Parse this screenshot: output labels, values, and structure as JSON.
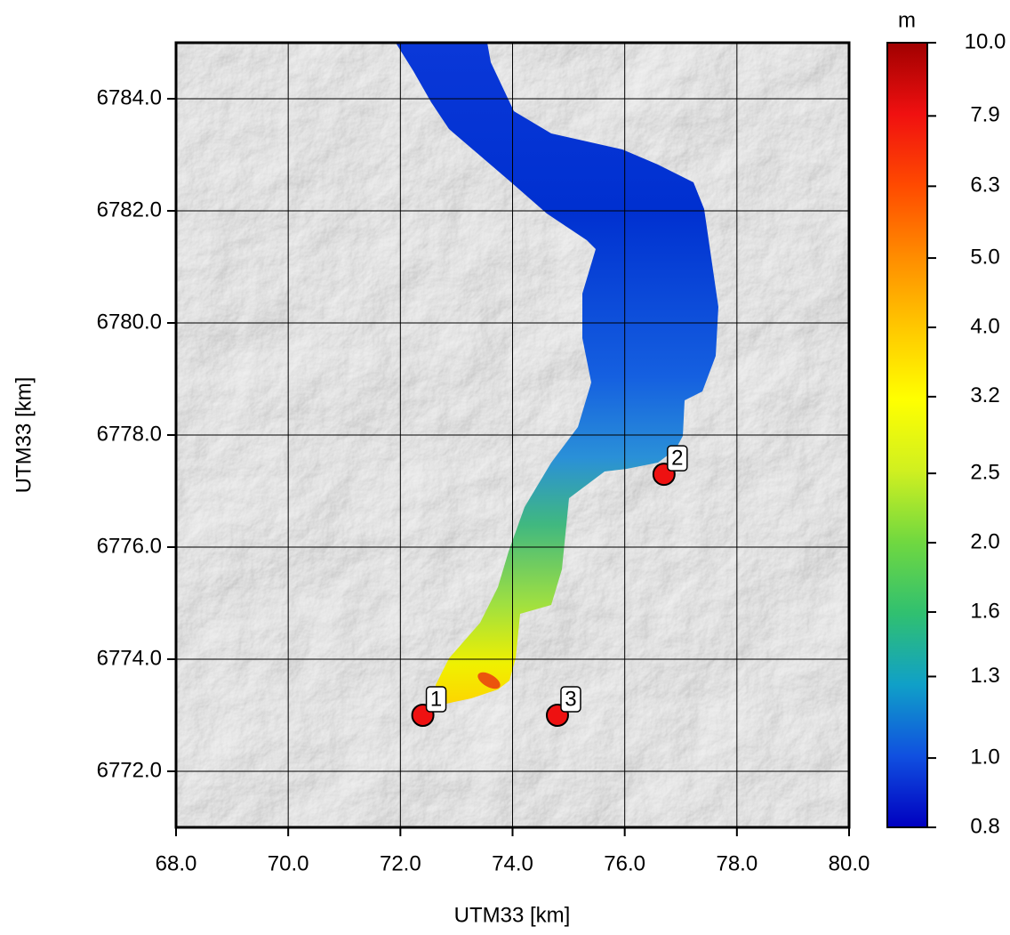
{
  "map": {
    "xlabel": "UTM33 [km]",
    "ylabel": "UTM33 [km]",
    "xlim": [
      68,
      80
    ],
    "ylim": [
      6771,
      6785
    ],
    "xticks": [
      {
        "value": 68,
        "label": "68.0"
      },
      {
        "value": 70,
        "label": "70.0"
      },
      {
        "value": 72,
        "label": "72.0"
      },
      {
        "value": 74,
        "label": "74.0"
      },
      {
        "value": 76,
        "label": "76.0"
      },
      {
        "value": 78,
        "label": "78.0"
      },
      {
        "value": 80,
        "label": "80.0"
      }
    ],
    "yticks": [
      {
        "value": 6772,
        "label": "6772.0"
      },
      {
        "value": 6774,
        "label": "6774.0"
      },
      {
        "value": 6776,
        "label": "6776.0"
      },
      {
        "value": 6778,
        "label": "6778.0"
      },
      {
        "value": 6780,
        "label": "6780.0"
      },
      {
        "value": 6782,
        "label": "6782.0"
      },
      {
        "value": 6784,
        "label": "6784.0"
      }
    ],
    "grid": true,
    "markers": [
      {
        "label": "1",
        "x": 72.4,
        "y": 6773.0,
        "color": "#ee1111"
      },
      {
        "label": "2",
        "x": 76.7,
        "y": 6777.3,
        "color": "#ee1111"
      },
      {
        "label": "3",
        "x": 74.8,
        "y": 6773.0,
        "color": "#ee1111"
      }
    ],
    "colorbar": {
      "unit": "m",
      "scale": "log",
      "lim": [
        0.8,
        10
      ],
      "ticks": [
        {
          "value": 0.8,
          "label": "0.8"
        },
        {
          "value": 1,
          "label": "1.0"
        },
        1.3,
        1.6,
        {
          "value": 2,
          "label": "2.0"
        },
        2.5,
        3.2,
        {
          "value": 4,
          "label": "4.0"
        },
        {
          "value": 5,
          "label": "5.0"
        },
        6.3,
        7.9,
        {
          "value": 10,
          "label": "10.0"
        }
      ],
      "colors": [
        "#0000c0",
        "#1050e0",
        "#10a0c8",
        "#30c070",
        "#70d840",
        "#d0f020",
        "#ffff00",
        "#ffc800",
        "#ff8c00",
        "#ff4a00",
        "#f01010",
        "#a00000"
      ]
    }
  }
}
